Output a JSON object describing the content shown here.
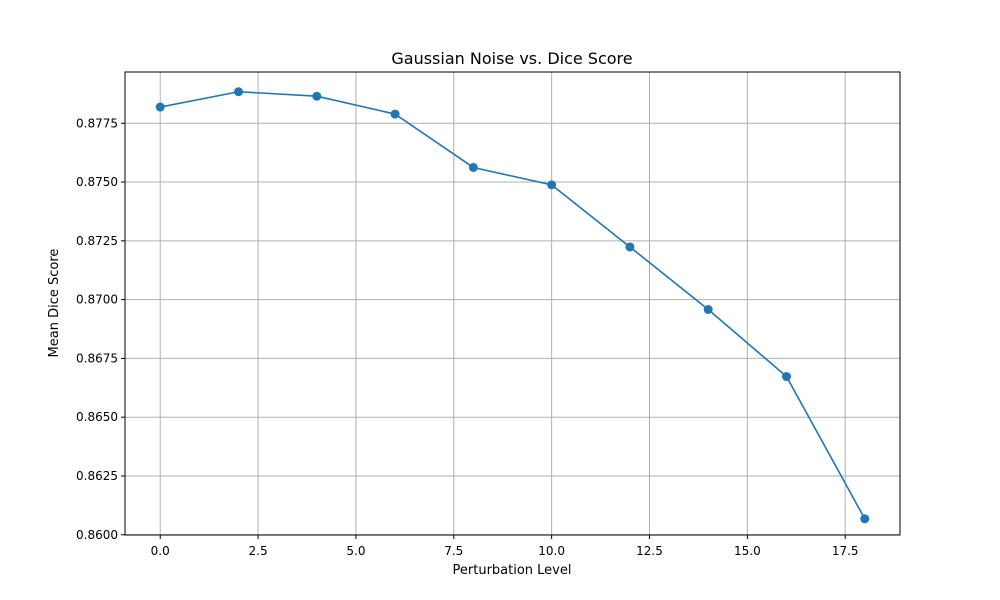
{
  "chart_data": {
    "type": "line",
    "title": "Gaussian Noise vs. Dice Score",
    "xlabel": "Perturbation Level",
    "ylabel": "Mean Dice Score",
    "x": [
      0,
      2,
      4,
      6,
      8,
      10,
      12,
      14,
      16,
      18
    ],
    "series": [
      {
        "values": [
          0.87819,
          0.87884,
          0.87865,
          0.87789,
          0.87562,
          0.87488,
          0.87224,
          0.86958,
          0.86673,
          0.86068
        ],
        "color": "#1f77b4",
        "marker": "circle"
      }
    ],
    "xlim": [
      -0.9,
      18.9
    ],
    "ylim": [
      0.85999,
      0.87968
    ],
    "xticks": [
      0.0,
      2.5,
      5.0,
      7.5,
      10.0,
      12.5,
      15.0,
      17.5
    ],
    "xtick_labels": [
      "0.0",
      "2.5",
      "5.0",
      "7.5",
      "10.0",
      "12.5",
      "15.0",
      "17.5"
    ],
    "yticks": [
      0.86,
      0.8625,
      0.865,
      0.8675,
      0.87,
      0.8725,
      0.875,
      0.8775
    ],
    "ytick_labels": [
      "0.8600",
      "0.8625",
      "0.8650",
      "0.8675",
      "0.8700",
      "0.8725",
      "0.8750",
      "0.8775"
    ],
    "grid": true
  }
}
